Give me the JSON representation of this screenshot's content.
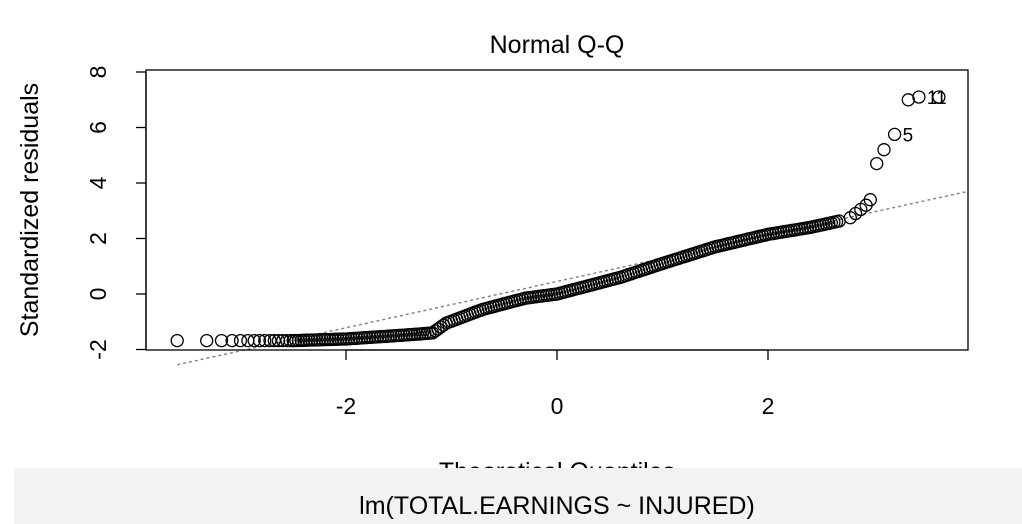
{
  "chart_data": {
    "type": "scatter",
    "title": "Normal Q-Q",
    "xlabel": "Theoretical Quantiles",
    "ylabel": "Standardized residuals",
    "subtitle": "lm(TOTAL.EARNINGS ~ INJURED)",
    "xlim": [
      -3.6,
      3.9
    ],
    "ylim": [
      -2.0,
      8.0
    ],
    "x_ticks": [
      -2,
      0,
      2
    ],
    "y_ticks": [
      -2,
      0,
      2,
      4,
      6,
      8
    ],
    "grid": false,
    "reference_line": {
      "x": [
        -3.6,
        3.9
      ],
      "y": [
        -2.55,
        3.7
      ],
      "style": "dotted",
      "color": "#808080"
    },
    "points": {
      "tail_low": [
        [
          -3.6,
          -1.68
        ],
        [
          -3.32,
          -1.68
        ],
        [
          -3.18,
          -1.68
        ],
        [
          -3.08,
          -1.68
        ],
        [
          -3.0,
          -1.68
        ],
        [
          -2.93,
          -1.68
        ],
        [
          -2.87,
          -1.68
        ],
        [
          -2.82,
          -1.68
        ],
        [
          -2.77,
          -1.68
        ],
        [
          -2.72,
          -1.68
        ],
        [
          -2.68,
          -1.68
        ],
        [
          -2.64,
          -1.68
        ],
        [
          -2.6,
          -1.68
        ],
        [
          -2.56,
          -1.68
        ],
        [
          -2.53,
          -1.68
        ],
        [
          -2.5,
          -1.68
        ]
      ],
      "body_segments": [
        [
          -2.5,
          -1.68
        ],
        [
          -2.0,
          -1.62
        ],
        [
          -1.6,
          -1.52
        ],
        [
          -1.3,
          -1.44
        ],
        [
          -1.18,
          -1.4
        ],
        [
          -1.05,
          -1.05
        ],
        [
          -0.7,
          -0.55
        ],
        [
          -0.3,
          -0.15
        ],
        [
          0.0,
          0.0
        ],
        [
          0.6,
          0.6
        ],
        [
          1.0,
          1.1
        ],
        [
          1.5,
          1.7
        ],
        [
          2.0,
          2.15
        ],
        [
          2.4,
          2.4
        ],
        [
          2.7,
          2.65
        ]
      ],
      "tail_high": [
        [
          2.78,
          2.75
        ],
        [
          2.83,
          2.9
        ],
        [
          2.88,
          3.05
        ],
        [
          2.93,
          3.2
        ],
        [
          2.97,
          3.4
        ],
        [
          3.03,
          4.7
        ],
        [
          3.1,
          5.2
        ],
        [
          3.2,
          5.75
        ],
        [
          3.33,
          7.0
        ],
        [
          3.43,
          7.1
        ],
        [
          3.62,
          7.1
        ]
      ]
    },
    "point_labels": [
      {
        "text": "5",
        "x": 3.2,
        "y": 5.75
      },
      {
        "text": "11",
        "x": 3.43,
        "y": 7.1
      }
    ]
  }
}
